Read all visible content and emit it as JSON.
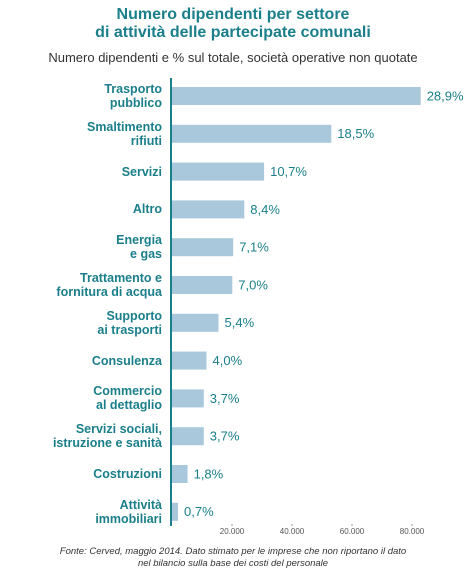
{
  "chart_data": {
    "type": "bar",
    "orientation": "horizontal",
    "title": "Numero dipendenti per settore\ndi attività delle partecipate comunali",
    "subtitle": "Numero dipendenti e % sul totale, società operative non quotate",
    "categories": [
      "Trasporto\npubblico",
      "Smaltimento\nrifiuti",
      "Servizi",
      "Altro",
      "Energia\ne gas",
      "Trattamento e\nfornitura di acqua",
      "Supporto\nai trasporti",
      "Consulenza",
      "Commercio\nal dettaglio",
      "Servizi sociali,\nistruzione e sanità",
      "Costruzioni",
      "Attività\nimmobiliari"
    ],
    "values": [
      82900,
      53100,
      30700,
      24100,
      20400,
      20100,
      15500,
      11500,
      10600,
      10600,
      5200,
      2000
    ],
    "value_labels": [
      "28,9%",
      "18,5%",
      "10,7%",
      "8,4%",
      "7,1%",
      "7,0%",
      "5,4%",
      "4,0%",
      "3,7%",
      "3,7%",
      "1,8%",
      "0,7%"
    ],
    "color": "#a9c8dc",
    "xlim": [
      0,
      95000
    ],
    "xticks": [
      {
        "value": 20000,
        "label": "20.000"
      },
      {
        "value": 40000,
        "label": "40.000"
      },
      {
        "value": 60000,
        "label": "60.000"
      },
      {
        "value": 80000,
        "label": "80.000"
      }
    ],
    "note": "Fonte: Cerved, maggio 2014. Dato stimato per le imprese che non riportano il dato\nnel bilancio sulla base dei costi del personale"
  }
}
